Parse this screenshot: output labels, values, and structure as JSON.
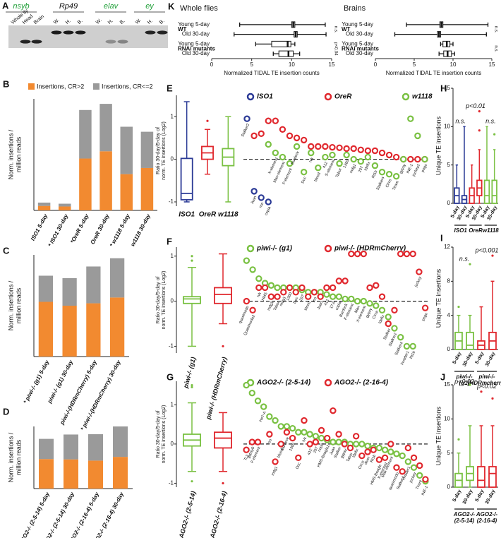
{
  "panel_a": {
    "label": "A",
    "genes": [
      {
        "name": "nsyb",
        "color": "#22a03a"
      },
      {
        "name": "Rp49",
        "color": "#111111"
      },
      {
        "name": "elav",
        "color": "#22a03a"
      },
      {
        "name": "ey",
        "color": "#22a03a"
      }
    ],
    "lanes": [
      "Whole fly",
      "Head",
      "Brain",
      "W.",
      "H.",
      "B.",
      "W.",
      "H.",
      "B.",
      "W.",
      "H.",
      "B."
    ]
  },
  "chart_data": [
    {
      "type": "hbox",
      "label": "K",
      "title": "Whole flies",
      "xlabel": "Normalized TIDAL TE insertion counts",
      "xlim": [
        0,
        15
      ],
      "xticks": [
        0,
        5,
        10,
        15
      ],
      "rows": [
        "Young 5-day",
        "Old 30-day",
        "Young 5-day",
        "Old 30-day"
      ],
      "groups": [
        "WT",
        "RNAi mutants"
      ],
      "min": [
        3.5,
        2.8,
        5.5,
        7.7
      ],
      "q1": [
        10.0,
        10.3,
        7.5,
        8.4
      ],
      "median": [
        10.2,
        10.5,
        9.5,
        9.6
      ],
      "q3": [
        10.4,
        10.7,
        9.9,
        10.2
      ],
      "max": [
        14.2,
        14.3,
        10.4,
        11.0
      ],
      "annotations": [
        "n.s.",
        "p<0.04"
      ]
    },
    {
      "type": "hbox",
      "title": "Brains",
      "xlabel": "Normalized TIDAL TE insertion counts",
      "xlim": [
        0,
        15
      ],
      "xticks": [
        0,
        5,
        10,
        15
      ],
      "rows": [
        "Young 5-day",
        "Old 30-day",
        "Young 5-day",
        "Old 30-day"
      ],
      "groups": [
        "WT",
        "RNAi mutants"
      ],
      "min": [
        4.0,
        2.5,
        8.4,
        8.2
      ],
      "q1": [
        8.3,
        8.0,
        8.7,
        8.8
      ],
      "median": [
        8.5,
        8.2,
        9.2,
        9.3
      ],
      "q3": [
        8.7,
        8.4,
        9.6,
        9.8
      ],
      "max": [
        14.5,
        14.3,
        10.0,
        10.2
      ],
      "annotations": [
        "n.s.",
        "n.s."
      ]
    },
    {
      "type": "bar",
      "label": "B",
      "ylabel": [
        "Norm. insertions /",
        "million reads"
      ],
      "ylim": [
        0,
        20
      ],
      "legend": true,
      "categories": [
        "ISO1 5-day",
        "* ISO1 30-day",
        "*OreR 5-day",
        "OreR 30-day",
        "* w1118 5-day",
        "w1118 30-day"
      ],
      "series": [
        {
          "name": "Insertions, CR>2",
          "color": "#f28a30",
          "values": [
            0.8,
            0.7,
            9.3,
            10.6,
            6.5,
            7.6
          ]
        },
        {
          "name": "Insertions, CR<=2",
          "color": "#9a9a9a",
          "values": [
            0.6,
            0.5,
            8.7,
            8.5,
            8.5,
            6.5
          ]
        }
      ]
    },
    {
      "type": "bar",
      "label": "C",
      "ylabel": [
        "Norm. insertions /",
        "million reads"
      ],
      "ylim": [
        0,
        21
      ],
      "legend": false,
      "categories": [
        "* piwi-/- (g1) 5-day",
        "piwi-/- (g1) 30-day",
        "piwi-/-(HDRmCherry) 5-day",
        "* piwi-/-(HDRmCherry) 30-day"
      ],
      "series": [
        {
          "name": "Insertions, CR>2",
          "color": "#f28a30",
          "values": [
            11.3,
            10.5,
            11.0,
            12.2
          ]
        },
        {
          "name": "Insertions, CR<=2",
          "color": "#9a9a9a",
          "values": [
            5.4,
            5.7,
            7.6,
            8.1
          ]
        }
      ]
    },
    {
      "type": "bar",
      "label": "D",
      "ylabel": [
        "Norm. insertions /",
        "million reads"
      ],
      "ylim": [
        0,
        20
      ],
      "legend": false,
      "categories": [
        "* AGO2-/- (2-5-14) 5-day",
        "AGO2-/- (2-5-14) 30-day",
        "AGO2-/- (2-16-4) 5-day",
        "* AGO2-/- (2-16-4) 30-day"
      ],
      "series": [
        {
          "name": "Insertions, CR>2",
          "color": "#f28a30",
          "values": [
            9.5,
            9.4,
            9.0,
            10.2
          ]
        },
        {
          "name": "Insertions, CR<=2",
          "color": "#9a9a9a",
          "values": [
            6.5,
            8.0,
            8.5,
            9.8
          ]
        }
      ]
    },
    {
      "type": "box",
      "label": "E",
      "ylabel": [
        "Ratio 30-day/5-day of",
        "norm. TE insertions (Log2)"
      ],
      "ylim": [
        -1.1,
        1.5
      ],
      "yticks": [
        -1,
        0,
        1
      ],
      "boxes": [
        {
          "name": "ISO1",
          "color": "#2b3a96",
          "min": -1.0,
          "q1": -0.95,
          "median": -0.8,
          "q3": 0.02,
          "max": 1.35,
          "outliers": []
        },
        {
          "name": "OreR",
          "color": "#e0282e",
          "min": -0.35,
          "q1": 0.0,
          "median": 0.15,
          "q3": 0.3,
          "max": 0.7,
          "outliers": [
            0.9
          ]
        },
        {
          "name": "w1118",
          "color": "#7ac143",
          "min": -1.0,
          "q1": -0.15,
          "median": 0.05,
          "q3": 0.25,
          "max": 1.0,
          "outliers": []
        }
      ]
    },
    {
      "type": "scatter",
      "ylim": [
        -1.1,
        1.5
      ],
      "categories": [
        "Stalker2",
        "Juan",
        "roo",
        "copia",
        "X-element",
        "Max-element",
        "F-element",
        "Burdock",
        "Doc",
        "Ivk",
        "blood",
        "412",
        "S-element",
        "Tabor",
        "1360",
        "mdg1",
        "297",
        "Idefix",
        "Rt1b",
        "Stalker4",
        "Circe",
        "Tirant",
        "gypsy",
        "INE-1",
        "jockey2",
        "pogo"
      ],
      "series": [
        {
          "name": "ISO1",
          "color": "#2b3a96",
          "values": [
            0.95,
            -0.75,
            -0.9,
            -1.0,
            null,
            null,
            null,
            null,
            null,
            null,
            null,
            null,
            null,
            null,
            null,
            null,
            null,
            null,
            null,
            null,
            null,
            null,
            null,
            null,
            null,
            null
          ]
        },
        {
          "name": "OreR",
          "color": "#e0282e",
          "values": [
            null,
            0.55,
            0.6,
            0.9,
            0.9,
            0.7,
            0.55,
            0.5,
            0.45,
            0.3,
            0.3,
            0.3,
            0.28,
            0.27,
            0.25,
            0.25,
            0.22,
            0.2,
            0.2,
            0.15,
            0.1,
            0.05,
            0.0,
            0.0,
            0.0,
            0.0
          ]
        },
        {
          "name": "w1118",
          "color": "#7ac143",
          "values": [
            null,
            null,
            null,
            0.35,
            0.15,
            0.05,
            -0.1,
            0.3,
            -0.3,
            0.15,
            -0.2,
            0.05,
            0.1,
            -0.1,
            0.1,
            0.0,
            -0.05,
            0.05,
            -0.15,
            -0.3,
            -0.35,
            -0.4,
            0.0,
            0.95,
            0.55,
            0.0
          ]
        }
      ]
    },
    {
      "type": "box",
      "label": "F",
      "ylabel": [
        "Ratio 30-day/5-day of",
        "norm. TE insertions (Log2)"
      ],
      "ylim": [
        -1.15,
        1.2
      ],
      "yticks": [
        -1,
        0,
        1
      ],
      "boxes": [
        {
          "name": "piwi-/- (g1)",
          "color": "#7ac143",
          "min": -1.0,
          "q1": -0.05,
          "median": 0.05,
          "q3": 0.1,
          "max": 0.75,
          "outliers": [
            0.9,
            1.0
          ]
        },
        {
          "name": "piwi-/- (HDRmCherry)",
          "color": "#e0282e",
          "min": -0.5,
          "q1": -0.05,
          "median": 0.15,
          "q3": 0.3,
          "max": 1.05,
          "outliers": [
            -1.0
          ]
        }
      ]
    },
    {
      "type": "scatter",
      "ylim": [
        -1.15,
        1.2
      ],
      "categories": [
        "quasimodo",
        "Quasimodo2",
        "Ivk",
        "HMS",
        "mdg1",
        "Tabor",
        "mdg3",
        "1360",
        "Doc",
        "297",
        "blood",
        "roo",
        "Juan",
        "412",
        "17.6",
        "copia",
        "Burdock",
        "F-element",
        "Max",
        "X-element",
        "gypsy",
        "Circe",
        "Idefix",
        "Stalker",
        "Stalker2",
        "Stalker4",
        "invader1",
        "Rt1b",
        "jockey",
        "pogo"
      ],
      "series": [
        {
          "name": "piwi-/- (g1)",
          "color": "#7ac143",
          "values": [
            0.9,
            0.7,
            0.5,
            0.4,
            0.35,
            0.3,
            0.3,
            0.3,
            0.3,
            0.25,
            0.2,
            0.2,
            0.2,
            0.15,
            0.1,
            0.1,
            0.05,
            0.05,
            0.0,
            0.0,
            -0.05,
            -0.1,
            -0.2,
            -0.35,
            -0.6,
            -0.8,
            -1.0,
            -1.0,
            null,
            null
          ]
        },
        {
          "name": "piwi-/- (HDRmCherry)",
          "color": "#e0282e",
          "values": [
            0.0,
            -0.2,
            0.3,
            0.3,
            0.1,
            0.1,
            0.2,
            0.3,
            0.2,
            0.3,
            0.1,
            0.2,
            0.1,
            0.3,
            0.3,
            0.45,
            0.45,
            1.05,
            1.05,
            1.05,
            0.3,
            0.35,
            0.1,
            -0.5,
            -0.2,
            1.05,
            1.05,
            1.05,
            0.65,
            -0.15
          ]
        }
      ]
    },
    {
      "type": "box",
      "label": "G",
      "ylabel": [
        "Ratio 30-day/5-day of",
        "norm. TE insertions (Log2)"
      ],
      "ylim": [
        -1.1,
        1.6
      ],
      "yticks": [
        -1,
        0,
        1
      ],
      "boxes": [
        {
          "name": "AGO2-/- (2-5-14)",
          "color": "#7ac143",
          "min": -0.7,
          "q1": -0.05,
          "median": 0.1,
          "q3": 0.25,
          "max": 1.05,
          "outliers": [
            1.5,
            1.45,
            -0.95
          ]
        },
        {
          "name": "AGO2-/- (2-16-4)",
          "color": "#e0282e",
          "min": -0.7,
          "q1": -0.1,
          "median": 0.15,
          "q3": 0.3,
          "max": 0.8,
          "outliers": [
            -1.0
          ]
        }
      ]
    },
    {
      "type": "scatter",
      "ylim": [
        -1.1,
        1.6
      ],
      "categories": [
        "Tc3",
        "gypsy6",
        "F-element",
        "HeT-A",
        "roo",
        "mdg1",
        "blood",
        "Burdock",
        "1360",
        "Doc",
        "Ivk",
        "412",
        "297",
        "copia",
        "HMS-Beagle2",
        "Juan",
        "Stalker",
        "gypsy",
        "Tabor",
        "Idefix",
        "Circe",
        "diver",
        "Rt1b",
        "HMS-Beagle",
        "X-element",
        "Max-element",
        "quasimodo",
        "Stalker4",
        "invader1",
        "jockey",
        "Tirant",
        "INE-1"
      ],
      "series": [
        {
          "name": "AGO2-/- (2-5-14)",
          "color": "#7ac143",
          "values": [
            1.5,
            1.3,
            1.1,
            0.95,
            0.7,
            0.6,
            0.45,
            0.45,
            0.4,
            0.3,
            0.3,
            0.25,
            0.2,
            0.15,
            0.1,
            0.05,
            0.05,
            0.05,
            0.0,
            0.0,
            0.0,
            -0.05,
            -0.1,
            -0.1,
            -0.15,
            -0.2,
            -0.25,
            -0.3,
            -0.45,
            -0.6,
            -0.8,
            -0.95
          ]
        },
        {
          "name": "AGO2-/- (2-16-4)",
          "color": "#e0282e",
          "values": [
            -0.15,
            0.05,
            0.05,
            null,
            0.25,
            -0.45,
            0.0,
            0.3,
            0.15,
            -0.35,
            0.6,
            0.0,
            0.05,
            0.35,
            0.15,
            0.85,
            0.25,
            0.0,
            -0.1,
            0.2,
            -0.3,
            -0.2,
            -0.15,
            -0.4,
            -0.35,
            0.0,
            -0.6,
            -0.7,
            -0.1,
            -0.35,
            -0.55,
            -0.9
          ]
        }
      ]
    },
    {
      "type": "groupbox",
      "label": "H",
      "ylabel": "Unique TE insertions",
      "ylim": [
        0,
        15
      ],
      "yticks": [
        0,
        5,
        10,
        15
      ],
      "groups": [
        {
          "name": [
            "ISO1"
          ],
          "color": "#2b3a96",
          "annotation": "n.s.",
          "boxes": [
            {
              "label": "5-day",
              "min": 0,
              "q1": 0,
              "median": 1,
              "q3": 2,
              "max": 5,
              "outliers": []
            },
            {
              "label": "30-day",
              "min": 0,
              "q1": 0,
              "median": 0.5,
              "q3": 1,
              "max": 10,
              "outliers": []
            }
          ]
        },
        {
          "name": [
            "OreR"
          ],
          "color": "#e0282e",
          "annotation": "p<0.01",
          "boxes": [
            {
              "label": "5-day",
              "min": 0,
              "q1": 0,
              "median": 1,
              "q3": 2,
              "max": 5,
              "outliers": []
            },
            {
              "label": "30-day",
              "min": 0,
              "q1": 1,
              "median": 2,
              "q3": 3,
              "max": 7,
              "outliers": [
                9.5,
                12
              ]
            }
          ]
        },
        {
          "name": [
            "w1118"
          ],
          "color": "#7ac143",
          "annotation": "n.s.",
          "boxes": [
            {
              "label": "5-day",
              "min": 0,
              "q1": 0,
              "median": 1,
              "q3": 3,
              "max": 10,
              "outliers": []
            },
            {
              "label": "30-day",
              "min": 0,
              "q1": 0,
              "median": 1,
              "q3": 3,
              "max": 7,
              "outliers": [
                9
              ]
            }
          ]
        }
      ]
    },
    {
      "type": "groupbox",
      "label": "I",
      "ylabel": "Unique TE insertions",
      "ylim": [
        0,
        12
      ],
      "yticks": [
        0,
        4,
        8,
        12
      ],
      "groups": [
        {
          "name": [
            "piwi-/-",
            "(g1)"
          ],
          "color": "#7ac143",
          "annotation": "n.s.",
          "boxes": [
            {
              "label": "5-day",
              "min": 0,
              "q1": 0,
              "median": 1,
              "q3": 2,
              "max": 4,
              "outliers": [
                5
              ]
            },
            {
              "label": "30-day",
              "min": 0,
              "q1": 0,
              "median": 0.5,
              "q3": 2,
              "max": 4,
              "outliers": [
                10
              ]
            }
          ]
        },
        {
          "name": [
            "piwi-/-",
            "(HDRmcherry)"
          ],
          "color": "#e0282e",
          "annotation": "p<0.001",
          "boxes": [
            {
              "label": "5-day",
              "min": 0,
              "q1": 0,
              "median": 0.5,
              "q3": 1,
              "max": 5,
              "outliers": []
            },
            {
              "label": "30-day",
              "min": 0,
              "q1": 0,
              "median": 1,
              "q3": 2,
              "max": 8,
              "outliers": [
                11
              ]
            }
          ]
        }
      ]
    },
    {
      "type": "groupbox",
      "label": "J",
      "ylabel": "Unique TE insertions",
      "ylim": [
        0,
        15
      ],
      "yticks": [
        0,
        5,
        10,
        15
      ],
      "groups": [
        {
          "name": [
            "AGO2-/-",
            "(2-5-14)"
          ],
          "color": "#7ac143",
          "annotation": "p<0.02",
          "boxes": [
            {
              "label": "5-day",
              "min": 0,
              "q1": 0,
              "median": 1,
              "q3": 2,
              "max": 5,
              "outliers": [
                7
              ]
            },
            {
              "label": "30-day",
              "min": 0,
              "q1": 1,
              "median": 2,
              "q3": 3,
              "max": 9,
              "outliers": [
                15
              ]
            }
          ]
        },
        {
          "name": [
            "AGO2-/-",
            "(2-16-4)"
          ],
          "color": "#e0282e",
          "annotation": "p<0.02",
          "boxes": [
            {
              "label": "5-day",
              "min": 0,
              "q1": 0,
              "median": 1,
              "q3": 3,
              "max": 9,
              "outliers": [
                14
              ]
            },
            {
              "label": "30-day",
              "min": 0,
              "q1": 0,
              "median": 2,
              "q3": 3,
              "max": 9,
              "outliers": [
                13
              ]
            }
          ]
        }
      ]
    }
  ]
}
